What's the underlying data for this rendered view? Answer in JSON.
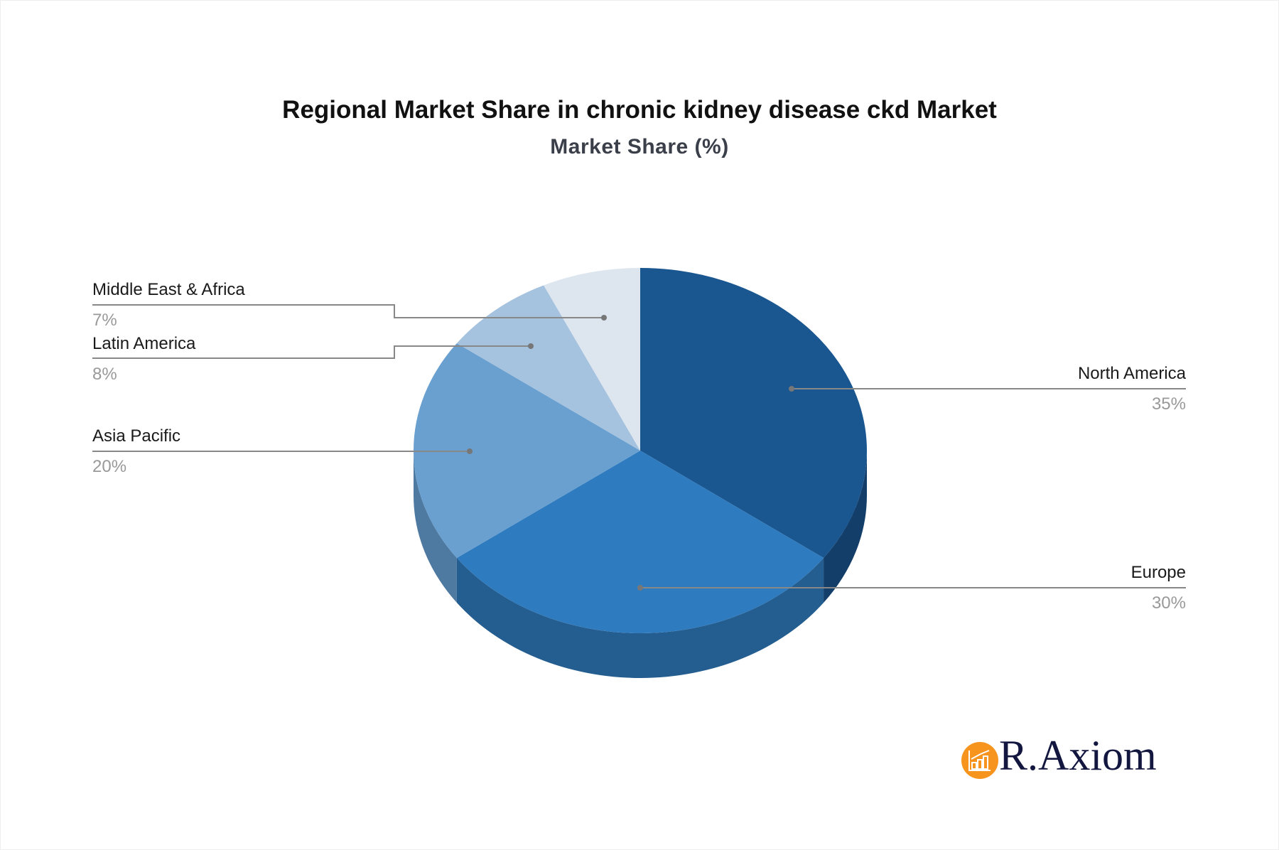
{
  "chart_data": {
    "type": "pie",
    "title": "Regional Market Share in chronic kidney disease ckd Market",
    "subtitle": "Market Share (%)",
    "style": "3d",
    "slices": [
      {
        "name": "North America",
        "value": 35,
        "label": "35%",
        "color": "#1a5690",
        "side_color": "#123e69"
      },
      {
        "name": "Europe",
        "value": 30,
        "label": "30%",
        "color": "#2e7bbf",
        "side_color": "#245d8f"
      },
      {
        "name": "Asia Pacific",
        "value": 20,
        "label": "20%",
        "color": "#6aa0d0",
        "side_color": "#4e79a0"
      },
      {
        "name": "Latin America",
        "value": 8,
        "label": "8%",
        "color": "#a5c2de",
        "side_color": "#7f98b0"
      },
      {
        "name": "Middle East & Africa",
        "value": 7,
        "label": "7%",
        "color": "#dde5ef",
        "side_color": "#b0b8c2"
      }
    ]
  },
  "logo": {
    "text": "R.Axiom",
    "icon": "bar-chart-growth-icon",
    "icon_color": "#f7941d",
    "text_color": "#13163f"
  }
}
